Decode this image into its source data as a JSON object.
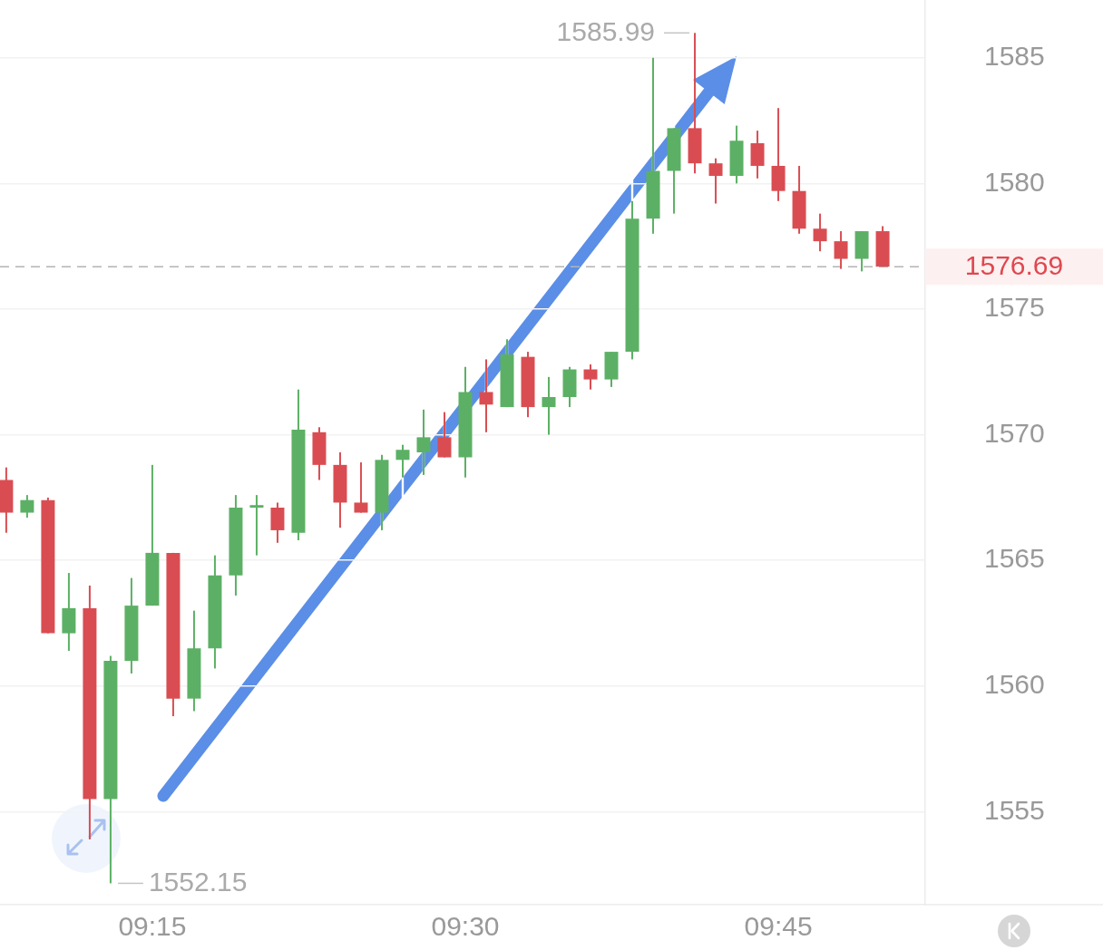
{
  "chart_data": {
    "type": "candlestick",
    "categories": [
      null,
      null,
      null,
      null,
      null,
      null,
      null,
      "09:15",
      null,
      null,
      null,
      null,
      null,
      null,
      null,
      null,
      null,
      null,
      null,
      null,
      null,
      null,
      "09:30",
      null,
      null,
      null,
      null,
      null,
      null,
      null,
      null,
      null,
      null,
      null,
      null,
      null,
      null,
      "09:45",
      null,
      null,
      null,
      null,
      null
    ],
    "ohlc": [
      [
        1568.2,
        1568.7,
        1566.1,
        1566.9
      ],
      [
        1566.9,
        1567.6,
        1566.7,
        1567.4
      ],
      [
        1567.4,
        1567.5,
        1562.1,
        1562.1
      ],
      [
        1562.1,
        1564.5,
        1561.4,
        1563.1
      ],
      [
        1563.1,
        1564.0,
        1553.9,
        1555.5
      ],
      [
        1555.5,
        1561.2,
        1552.15,
        1561.0
      ],
      [
        1561.0,
        1564.3,
        1560.5,
        1563.2
      ],
      [
        1563.2,
        1568.8,
        1563.2,
        1565.3
      ],
      [
        1565.3,
        1565.3,
        1558.8,
        1559.5
      ],
      [
        1559.5,
        1563.0,
        1559.0,
        1561.5
      ],
      [
        1561.5,
        1565.2,
        1560.7,
        1564.4
      ],
      [
        1564.4,
        1567.6,
        1563.6,
        1567.1
      ],
      [
        1567.1,
        1567.6,
        1565.2,
        1567.2
      ],
      [
        1567.1,
        1567.3,
        1565.7,
        1566.2
      ],
      [
        1566.1,
        1571.8,
        1565.8,
        1570.2
      ],
      [
        1570.1,
        1570.3,
        1568.2,
        1568.8
      ],
      [
        1568.8,
        1569.3,
        1566.3,
        1567.3
      ],
      [
        1567.3,
        1568.9,
        1566.9,
        1566.9
      ],
      [
        1566.9,
        1569.2,
        1566.2,
        1569.0
      ],
      [
        1569.0,
        1569.6,
        1568.3,
        1569.4
      ],
      [
        1569.3,
        1571.0,
        1568.4,
        1569.9
      ],
      [
        1569.9,
        1570.9,
        1569.1,
        1569.1
      ],
      [
        1569.1,
        1572.7,
        1568.3,
        1571.7
      ],
      [
        1571.7,
        1573.0,
        1570.1,
        1571.2
      ],
      [
        1571.1,
        1573.8,
        1571.1,
        1573.2
      ],
      [
        1573.1,
        1573.3,
        1570.7,
        1571.1
      ],
      [
        1571.1,
        1572.3,
        1570.0,
        1571.5
      ],
      [
        1571.5,
        1572.7,
        1571.1,
        1572.6
      ],
      [
        1572.6,
        1572.8,
        1571.8,
        1572.2
      ],
      [
        1572.2,
        1573.3,
        1571.9,
        1573.3
      ],
      [
        1573.3,
        1579.3,
        1573.0,
        1578.6
      ],
      [
        1578.6,
        1585.0,
        1578.0,
        1580.5
      ],
      [
        1580.5,
        1582.2,
        1578.8,
        1582.2
      ],
      [
        1582.2,
        1585.99,
        1580.4,
        1580.8
      ],
      [
        1580.8,
        1581.0,
        1579.2,
        1580.3
      ],
      [
        1580.3,
        1582.3,
        1580.0,
        1581.7
      ],
      [
        1581.6,
        1582.1,
        1580.2,
        1580.7
      ],
      [
        1580.7,
        1583.0,
        1579.3,
        1579.7
      ],
      [
        1579.7,
        1580.7,
        1578.0,
        1578.2
      ],
      [
        1578.2,
        1578.8,
        1577.3,
        1577.7
      ],
      [
        1577.7,
        1578.1,
        1576.6,
        1577.0
      ],
      [
        1577.0,
        1578.1,
        1576.5,
        1578.1
      ],
      [
        1578.1,
        1578.3,
        1576.69,
        1576.69
      ]
    ],
    "colors": [
      "#d94d52",
      "#5cb065",
      "#d94d52",
      "#5cb065",
      "#d94d52",
      "#5cb065",
      "#5cb065",
      "#5cb065",
      "#d94d52",
      "#5cb065",
      "#5cb065",
      "#5cb065",
      "#5cb065",
      "#d94d52",
      "#5cb065",
      "#d94d52",
      "#d94d52",
      "#d94d52",
      "#5cb065",
      "#5cb065",
      "#5cb065",
      "#d94d52",
      "#5cb065",
      "#d94d52",
      "#5cb065",
      "#d94d52",
      "#5cb065",
      "#5cb065",
      "#d94d52",
      "#5cb065",
      "#5cb065",
      "#5cb065",
      "#5cb065",
      "#d94d52",
      "#d94d52",
      "#5cb065",
      "#d94d52",
      "#d94d52",
      "#d94d52",
      "#d94d52",
      "#d94d52",
      "#5cb065",
      "#d94d52"
    ],
    "ylim": [
      1551.3,
      1587.3
    ],
    "yticks": [
      1555,
      1560,
      1565,
      1570,
      1575,
      1580,
      1585
    ],
    "grid": "y",
    "ref_lines": [
      {
        "axis": "y",
        "value": 1576.69,
        "label": "1576.69",
        "color": "#b3b3b3",
        "line_style": "dashed"
      }
    ],
    "annotations": [
      "1585.99",
      "1552.15"
    ]
  }
}
